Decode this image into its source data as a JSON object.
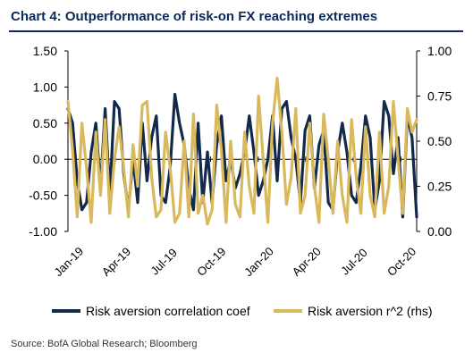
{
  "title": "Chart 4: Outperformance of risk-on FX reaching extremes",
  "source": "Source: BofA Global Research; Bloomberg",
  "colors": {
    "navy": "#13294b",
    "gold": "#d9b95b",
    "axis": "#000000"
  },
  "chart_data": {
    "type": "line",
    "x_tick_labels": [
      "Jan-19",
      "Apr-19",
      "Jul-19",
      "Oct-19",
      "Jan-20",
      "Apr-20",
      "Jul-20",
      "Oct-20"
    ],
    "left_axis": {
      "range": [
        -1.0,
        1.5
      ],
      "ticks": [
        "1.50",
        "1.00",
        "0.50",
        "0.00",
        "-0.50",
        "-1.00"
      ],
      "tick_values": [
        1.5,
        1.0,
        0.5,
        0.0,
        -0.5,
        -1.0
      ]
    },
    "right_axis": {
      "range": [
        0.0,
        1.0
      ],
      "ticks": [
        "1.00",
        "0.75",
        "0.50",
        "0.25",
        "0.00"
      ],
      "tick_values": [
        1.0,
        0.75,
        0.5,
        0.25,
        0.0
      ]
    },
    "x_range": [
      0,
      22
    ],
    "series": [
      {
        "name": "Risk aversion correlation coef",
        "axis": "left",
        "values": [
          0.7,
          0.5,
          -0.3,
          -0.7,
          -0.6,
          0.1,
          0.5,
          -0.4,
          0.7,
          -0.5,
          0.8,
          0.7,
          -0.2,
          -0.7,
          0.0,
          -0.6,
          0.5,
          -0.3,
          0.3,
          0.6,
          -0.5,
          -0.6,
          -0.1,
          0.9,
          0.5,
          0.2,
          -0.4,
          -0.7,
          0.5,
          -0.6,
          0.1,
          -0.6,
          0.2,
          0.6,
          -0.3,
          0.0,
          -0.4,
          -0.2,
          0.1,
          0.6,
          0.1,
          -0.5,
          -0.3,
          0.0,
          0.6,
          -0.3,
          0.7,
          0.8,
          0.3,
          0.0,
          -0.6,
          0.4,
          0.6,
          -0.4,
          0.2,
          0.4,
          -0.6,
          -0.7,
          0.1,
          0.5,
          0.1,
          -0.5,
          -0.6,
          -0.1,
          0.6,
          0.3,
          -0.7,
          -0.3,
          0.8,
          0.6,
          -0.2,
          0.3,
          -0.8,
          0.6,
          0.3,
          -0.8
        ],
        "color": "#13294b"
      },
      {
        "name": "Risk aversion r^2 (rhs)",
        "axis": "right",
        "values": [
          0.72,
          0.45,
          0.08,
          0.6,
          0.35,
          0.05,
          0.55,
          0.2,
          0.62,
          0.1,
          0.4,
          0.58,
          0.35,
          0.08,
          0.48,
          0.25,
          0.7,
          0.72,
          0.3,
          0.08,
          0.12,
          0.55,
          0.35,
          0.05,
          0.1,
          0.5,
          0.08,
          0.65,
          0.1,
          0.2,
          0.04,
          0.12,
          0.7,
          0.45,
          0.05,
          0.5,
          0.15,
          0.08,
          0.55,
          0.25,
          0.1,
          0.75,
          0.4,
          0.05,
          0.6,
          0.85,
          0.55,
          0.15,
          0.3,
          0.68,
          0.1,
          0.2,
          0.6,
          0.25,
          0.05,
          0.65,
          0.4,
          0.1,
          0.5,
          0.2,
          0.05,
          0.62,
          0.3,
          0.1,
          0.58,
          0.2,
          0.08,
          0.55,
          0.1,
          0.25,
          0.72,
          0.4,
          0.1,
          0.68,
          0.55,
          0.62
        ],
        "color": "#d9b95b"
      }
    ],
    "legend": [
      {
        "label": "Risk aversion correlation coef",
        "color": "#13294b"
      },
      {
        "label": "Risk aversion r^2 (rhs)",
        "color": "#d9b95b"
      }
    ],
    "legend_position": "bottom"
  }
}
